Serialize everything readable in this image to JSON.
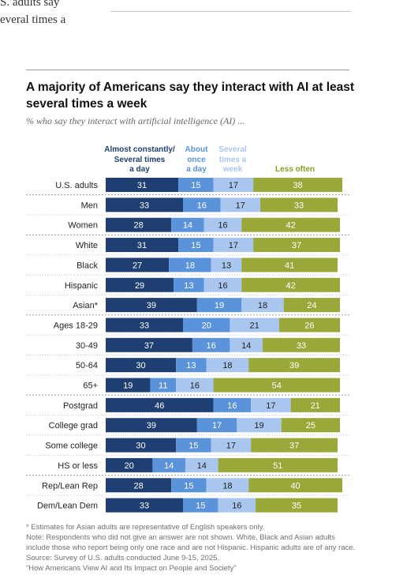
{
  "fragment": {
    "text": "S. adults say\neveral times a"
  },
  "chart_data": {
    "type": "bar",
    "orientation": "horizontal",
    "stacked": true,
    "title": "A majority of Americans say they interact with AI at least several times a week",
    "subtitle": "% who say they interact with artificial intelligence (AI) ...",
    "categories": [
      "U.S. adults",
      "Men",
      "Women",
      "White",
      "Black",
      "Hispanic",
      "Asian*",
      "Ages 18-29",
      "30-49",
      "50-64",
      "65+",
      "Postgrad",
      "College grad",
      "Some college",
      "HS or less",
      "Rep/Lean Rep",
      "Dem/Lean Dem"
    ],
    "series": [
      {
        "name": "Almost constantly/\nSeveral times\na day",
        "color": "#1f3f72",
        "label_color": "#ffffff",
        "values": [
          31,
          33,
          28,
          31,
          27,
          29,
          39,
          33,
          37,
          30,
          19,
          46,
          39,
          30,
          20,
          28,
          33
        ]
      },
      {
        "name": "About\nonce\na day",
        "color": "#5b93da",
        "label_color": "#ffffff",
        "values": [
          15,
          16,
          14,
          15,
          18,
          13,
          19,
          20,
          16,
          13,
          11,
          16,
          17,
          15,
          14,
          15,
          15
        ]
      },
      {
        "name": "Several\ntimes a\nweek",
        "color": "#a9c6ef",
        "label_color": "#222222",
        "values": [
          17,
          17,
          16,
          17,
          13,
          16,
          18,
          21,
          14,
          18,
          16,
          17,
          19,
          17,
          14,
          18,
          16
        ]
      },
      {
        "name": "Less often",
        "color": "#9aa83a",
        "label_color": "#ffffff",
        "values": [
          38,
          33,
          42,
          37,
          41,
          42,
          24,
          26,
          33,
          39,
          54,
          21,
          25,
          37,
          51,
          40,
          35
        ]
      }
    ],
    "group_separators_after": [
      "U.S. adults",
      "Women",
      "Asian*",
      "65+",
      "HS or less"
    ],
    "legend_colors": [
      "#1f3f72",
      "#5b93da",
      "#a9c6ef",
      "#8a9a20"
    ],
    "xlim": [
      0,
      100
    ],
    "grid": false,
    "legend": "top"
  },
  "notes": {
    "asterisk": "* Estimates for Asian adults are representative of English speakers only.",
    "note": "Note: Respondents who did not give an answer are not shown. White, Black and Asian adults include those who report being only one race and are not Hispanic. Hispanic adults are of any race.",
    "source": "Source: Survey of U.S. adults conducted June 9-15, 2025.",
    "report": "“How Americans View AI and Its Impact on People and Society”"
  }
}
